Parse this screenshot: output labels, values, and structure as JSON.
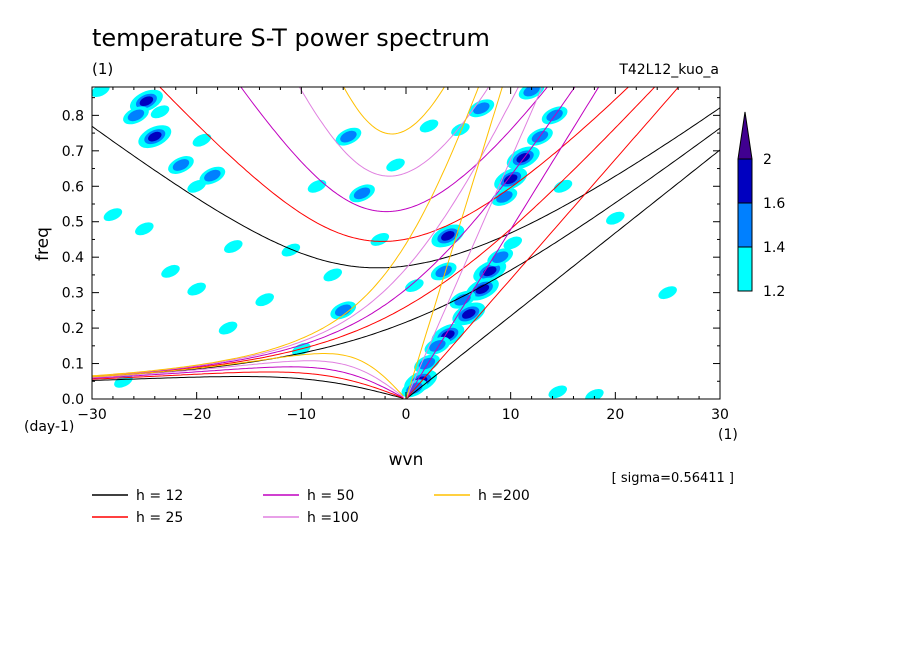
{
  "chart_data": {
    "type": "heatmap",
    "title": "temperature S-T power spectrum",
    "title_unit": "(1)",
    "run_label": "T42L12_kuo_a",
    "xlabel": "wvn",
    "x_unit": "(1)",
    "ylabel": "freq",
    "y_unit": "(day-1)",
    "xlim": [
      -30,
      30
    ],
    "ylim": [
      0,
      0.88
    ],
    "x_ticks": [
      "−30",
      "−20",
      "−10",
      "0",
      "10",
      "20",
      "30"
    ],
    "x_tick_values": [
      -30,
      -20,
      -10,
      0,
      10,
      20,
      30
    ],
    "y_ticks": [
      "0.0",
      "0.1",
      "0.2",
      "0.3",
      "0.4",
      "0.5",
      "0.6",
      "0.7",
      "0.8"
    ],
    "y_tick_values": [
      0,
      0.1,
      0.2,
      0.3,
      0.4,
      0.5,
      0.6,
      0.7,
      0.8
    ],
    "grid": false,
    "sigma_note": "[ sigma=0.56411 ]",
    "colorbar": {
      "levels": [
        1.2,
        1.4,
        1.6,
        2
      ],
      "level_labels": [
        "1.2",
        "1.4",
        "1.6",
        "2"
      ],
      "colors": [
        "#00ffff",
        "#0080ff",
        "#0000c0",
        "#400090"
      ]
    },
    "shade_colors": {
      "cyan": "#00ffff",
      "mid": "#0080ff",
      "dark": "#0000c0"
    },
    "shaded_patches": [
      {
        "x": 4.0,
        "y": 0.46,
        "level": 1.6
      },
      {
        "x": 3.6,
        "y": 0.36,
        "level": 1.4
      },
      {
        "x": 8.0,
        "y": 0.36,
        "level": 1.6
      },
      {
        "x": 7.3,
        "y": 0.31,
        "level": 1.6
      },
      {
        "x": 5.4,
        "y": 0.28,
        "level": 1.4
      },
      {
        "x": 6.0,
        "y": 0.24,
        "level": 1.6
      },
      {
        "x": 4.0,
        "y": 0.18,
        "level": 1.6
      },
      {
        "x": 3.0,
        "y": 0.15,
        "level": 1.4
      },
      {
        "x": 2.0,
        "y": 0.1,
        "level": 1.4
      },
      {
        "x": 1.4,
        "y": 0.05,
        "level": 1.6
      },
      {
        "x": 0.8,
        "y": 0.03,
        "level": 1.4
      },
      {
        "x": 10.0,
        "y": 0.62,
        "level": 1.6
      },
      {
        "x": 11.2,
        "y": 0.68,
        "level": 1.6
      },
      {
        "x": 12.8,
        "y": 0.74,
        "level": 1.4
      },
      {
        "x": 14.2,
        "y": 0.8,
        "level": 1.4
      },
      {
        "x": 9.0,
        "y": 0.4,
        "level": 1.4
      },
      {
        "x": 10.2,
        "y": 0.44,
        "level": 1.2
      },
      {
        "x": 9.4,
        "y": 0.57,
        "level": 1.4
      },
      {
        "x": -24.8,
        "y": 0.84,
        "level": 1.6
      },
      {
        "x": -23.5,
        "y": 0.81,
        "level": 1.2
      },
      {
        "x": -24.0,
        "y": 0.74,
        "level": 1.6
      },
      {
        "x": -21.5,
        "y": 0.66,
        "level": 1.4
      },
      {
        "x": -19.5,
        "y": 0.73,
        "level": 1.2
      },
      {
        "x": -18.5,
        "y": 0.63,
        "level": 1.4
      },
      {
        "x": -20.0,
        "y": 0.6,
        "level": 1.2
      },
      {
        "x": -25.8,
        "y": 0.8,
        "level": 1.4
      },
      {
        "x": -29.2,
        "y": 0.87,
        "level": 1.2
      },
      {
        "x": -5.5,
        "y": 0.74,
        "level": 1.4
      },
      {
        "x": -4.2,
        "y": 0.58,
        "level": 1.4
      },
      {
        "x": 2.2,
        "y": 0.77,
        "level": 1.2
      },
      {
        "x": 5.2,
        "y": 0.76,
        "level": 1.2
      },
      {
        "x": 7.2,
        "y": 0.82,
        "level": 1.4
      },
      {
        "x": 12.0,
        "y": 0.87,
        "level": 1.4
      },
      {
        "x": -6.0,
        "y": 0.25,
        "level": 1.4
      },
      {
        "x": -8.5,
        "y": 0.6,
        "level": 1.2
      },
      {
        "x": 0.8,
        "y": 0.32,
        "level": 1.2
      },
      {
        "x": -11.0,
        "y": 0.42,
        "level": 1.2
      },
      {
        "x": -16.5,
        "y": 0.43,
        "level": 1.2
      },
      {
        "x": -20.0,
        "y": 0.31,
        "level": 1.2
      },
      {
        "x": -22.5,
        "y": 0.36,
        "level": 1.2
      },
      {
        "x": -25.0,
        "y": 0.48,
        "level": 1.2
      },
      {
        "x": -28.0,
        "y": 0.52,
        "level": 1.2
      },
      {
        "x": -27.0,
        "y": 0.05,
        "level": 1.2
      },
      {
        "x": -17.0,
        "y": 0.2,
        "level": 1.2
      },
      {
        "x": -10.0,
        "y": 0.14,
        "level": 1.2
      },
      {
        "x": 15.0,
        "y": 0.6,
        "level": 1.2
      },
      {
        "x": 18.0,
        "y": 0.01,
        "level": 1.2
      },
      {
        "x": 14.5,
        "y": 0.02,
        "level": 1.2
      },
      {
        "x": -7.0,
        "y": 0.35,
        "level": 1.2
      },
      {
        "x": -2.5,
        "y": 0.45,
        "level": 1.2
      },
      {
        "x": -13.5,
        "y": 0.28,
        "level": 1.2
      },
      {
        "x": -1.0,
        "y": 0.66,
        "level": 1.2
      },
      {
        "x": 20.0,
        "y": 0.51,
        "level": 1.2
      },
      {
        "x": 25.0,
        "y": 0.3,
        "level": 1.2
      }
    ],
    "series": [
      {
        "name": "h = 12",
        "h": 12,
        "color": "#000000"
      },
      {
        "name": "h = 25",
        "h": 25,
        "color": "#ff0000"
      },
      {
        "name": "h = 50",
        "h": 50,
        "color": "#c000c0"
      },
      {
        "name": "h =100",
        "h": 100,
        "color": "#e080e0"
      },
      {
        "name": "h =200",
        "h": 200,
        "color": "#ffc000"
      }
    ],
    "legend_position": "bottom"
  }
}
